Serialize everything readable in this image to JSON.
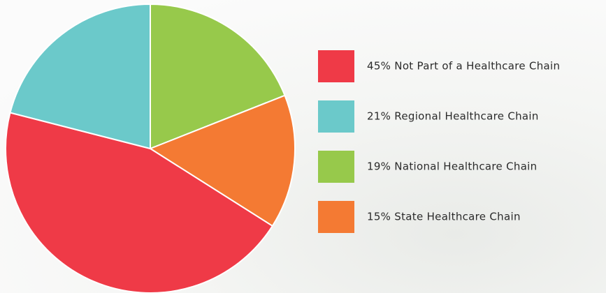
{
  "chart_data": {
    "type": "pie",
    "categories": [
      "45% Not Part of a Healthcare Chain",
      "21% Regional Healthcare Chain",
      "19% National Healthcare Chain",
      "15% State Healthcare Chain"
    ],
    "values": [
      45,
      21,
      19,
      15
    ],
    "colors": [
      "#ef3a47",
      "#6bc9ca",
      "#97c94b",
      "#f47a33"
    ]
  }
}
